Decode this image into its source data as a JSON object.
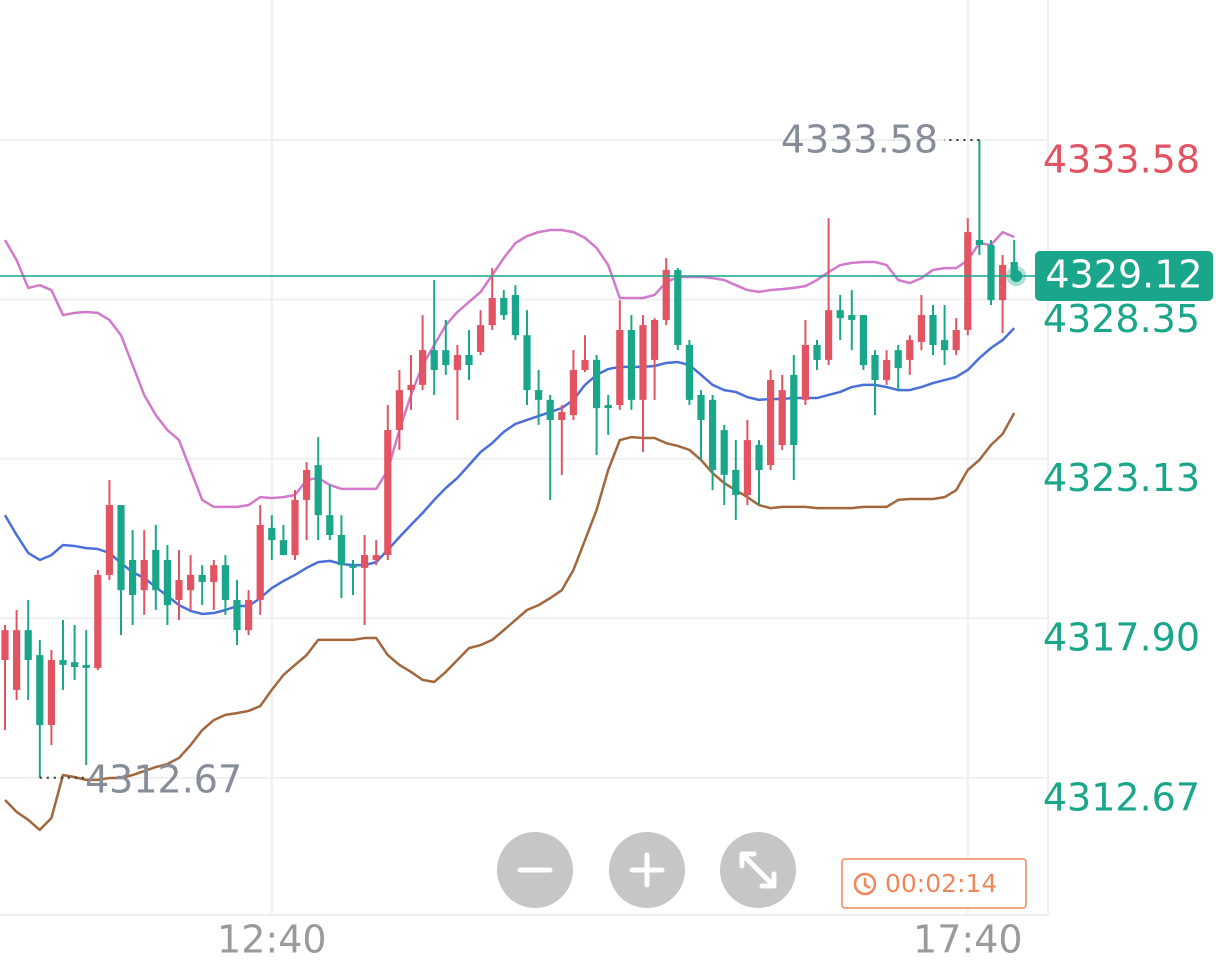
{
  "chart_data": {
    "type": "candlestick",
    "categories": [
      null,
      null,
      null,
      null,
      null,
      null,
      null,
      null,
      null,
      null,
      null,
      null,
      null,
      null,
      null,
      null,
      null,
      null,
      null,
      null,
      null,
      null,
      null,
      "12:40",
      null,
      null,
      null,
      null,
      null,
      null,
      null,
      null,
      null,
      null,
      null,
      null,
      null,
      null,
      null,
      null,
      null,
      null,
      null,
      null,
      null,
      null,
      null,
      null,
      null,
      null,
      null,
      null,
      null,
      null,
      null,
      null,
      null,
      null,
      null,
      null,
      null,
      null,
      null,
      null,
      null,
      null,
      null,
      null,
      null,
      null,
      null,
      null,
      null,
      null,
      null,
      null,
      null,
      null,
      null,
      null,
      null,
      null,
      null,
      "17:40",
      null,
      null,
      null,
      null
    ],
    "open": [
      4316.53,
      4315.55,
      4317.51,
      4316.69,
      4314.4,
      4316.53,
      4316.46,
      4316.37,
      4316.27,
      4319.32,
      4321.61,
      4319.81,
      4318.82,
      4320.14,
      4319.81,
      4318.5,
      4318.82,
      4319.32,
      4319.09,
      4319.64,
      4318.5,
      4317.51,
      4318.5,
      4320.86,
      4320.46,
      4319.97,
      4321.78,
      4322.92,
      4321.28,
      4320.63,
      4319.64,
      4319.55,
      4319.81,
      4319.97,
      4324.07,
      4325.38,
      4325.55,
      4326.69,
      4326.69,
      4326.04,
      4326.53,
      4326.63,
      4327.51,
      4328.4,
      4328.5,
      4327.18,
      4325.38,
      4325.06,
      4324.4,
      4324.56,
      4326.04,
      4326.37,
      4324.89,
      4324.89,
      4327.35,
      4325.06,
      4326.37,
      4327.68,
      4329.32,
      4326.86,
      4325.22,
      4325.06,
      4324.07,
      4322.76,
      4321.94,
      4323.58,
      4322.92,
      4323.58,
      4325.88,
      4325.06,
      4326.86,
      4326.37,
      4328.0,
      4327.84,
      4327.84,
      4326.53,
      4325.71,
      4326.69,
      4326.37,
      4326.96,
      4327.84,
      4327.02,
      4326.69,
      4327.35,
      4330.3,
      4330.14,
      4328.33,
      4329.58
    ],
    "high": [
      4317.68,
      4318.17,
      4318.5,
      4317.19,
      4316.86,
      4317.84,
      4317.68,
      4317.51,
      4319.48,
      4322.43,
      4321.61,
      4320.79,
      4320.79,
      4320.96,
      4320.3,
      4320.14,
      4319.97,
      4319.64,
      4319.81,
      4319.97,
      4319.15,
      4318.82,
      4321.61,
      4321.28,
      4320.96,
      4322.1,
      4323.02,
      4323.84,
      4322.27,
      4321.28,
      4319.81,
      4320.63,
      4320.46,
      4324.89,
      4326.04,
      4326.53,
      4327.84,
      4328.99,
      4327.68,
      4326.86,
      4327.35,
      4328.0,
      4329.38,
      4328.66,
      4328.82,
      4328.0,
      4326.04,
      4325.22,
      4324.89,
      4326.69,
      4327.18,
      4326.53,
      4325.22,
      4328.33,
      4327.84,
      4327.84,
      4327.74,
      4329.71,
      4329.38,
      4327.02,
      4325.38,
      4325.22,
      4324.24,
      4323.74,
      4324.4,
      4323.74,
      4326.04,
      4325.88,
      4326.53,
      4327.68,
      4327.02,
      4331.02,
      4328.5,
      4328.66,
      4327.84,
      4326.69,
      4326.69,
      4326.86,
      4327.18,
      4328.5,
      4328.17,
      4328.17,
      4327.74,
      4331.02,
      4333.58,
      4330.3,
      4329.81,
      4330.3
    ],
    "low": [
      4314.23,
      4315.22,
      4315.22,
      4312.67,
      4313.74,
      4315.55,
      4315.88,
      4313.09,
      4316.2,
      4319.15,
      4317.35,
      4317.68,
      4318.01,
      4318.17,
      4317.68,
      4317.84,
      4318.17,
      4318.33,
      4318.17,
      4318.01,
      4317.02,
      4317.35,
      4318.01,
      4319.81,
      4319.97,
      4319.81,
      4320.46,
      4320.46,
      4320.46,
      4318.56,
      4318.66,
      4317.68,
      4319.64,
      4319.81,
      4323.42,
      4324.73,
      4325.38,
      4325.22,
      4325.88,
      4324.4,
      4325.71,
      4326.53,
      4327.35,
      4327.68,
      4327.02,
      4324.89,
      4324.24,
      4321.78,
      4322.6,
      4324.4,
      4325.97,
      4323.25,
      4323.91,
      4324.73,
      4324.73,
      4323.35,
      4325.06,
      4327.51,
      4326.69,
      4324.89,
      4323.09,
      4322.1,
      4321.61,
      4321.12,
      4321.61,
      4321.61,
      4322.76,
      4323.42,
      4322.43,
      4324.89,
      4326.04,
      4326.2,
      4327.02,
      4326.69,
      4326.04,
      4324.56,
      4325.55,
      4325.38,
      4325.88,
      4326.69,
      4326.53,
      4326.2,
      4326.53,
      4327.18,
      4329.81,
      4328.17,
      4327.25,
      4328.99
    ],
    "close": [
      4317.51,
      4317.51,
      4316.53,
      4314.4,
      4316.53,
      4316.37,
      4316.3,
      4316.27,
      4319.32,
      4321.61,
      4318.82,
      4318.66,
      4319.81,
      4318.82,
      4318.33,
      4319.15,
      4319.32,
      4319.09,
      4319.64,
      4318.5,
      4317.51,
      4318.5,
      4320.96,
      4320.46,
      4319.97,
      4321.78,
      4322.76,
      4321.28,
      4320.63,
      4319.64,
      4319.55,
      4319.97,
      4319.97,
      4324.07,
      4325.38,
      4325.55,
      4326.69,
      4326.04,
      4326.2,
      4326.53,
      4326.2,
      4327.51,
      4328.4,
      4327.84,
      4327.18,
      4325.38,
      4325.06,
      4324.4,
      4324.66,
      4326.04,
      4326.37,
      4324.79,
      4324.79,
      4327.35,
      4325.06,
      4327.51,
      4327.68,
      4329.32,
      4326.86,
      4325.06,
      4324.4,
      4322.76,
      4322.6,
      4321.94,
      4323.74,
      4322.76,
      4325.71,
      4325.38,
      4323.58,
      4326.86,
      4326.37,
      4328.0,
      4327.74,
      4327.68,
      4326.2,
      4325.71,
      4326.37,
      4326.1,
      4327.02,
      4327.84,
      4326.86,
      4326.69,
      4327.35,
      4330.56,
      4330.14,
      4328.33,
      4329.48,
      4329.12
    ],
    "up_color": "#e35462",
    "down_color": "#1aa68a",
    "lines": [
      {
        "color": "#d279cc",
        "values": [
          4330.3,
          4329.64,
          4328.73,
          4328.82,
          4328.66,
          4327.84,
          4327.91,
          4327.94,
          4327.91,
          4327.68,
          4327.18,
          4326.2,
          4325.22,
          4324.56,
          4324.07,
          4323.74,
          4322.76,
          4321.78,
          4321.55,
          4321.55,
          4321.55,
          4321.61,
          4321.87,
          4321.84,
          4321.87,
          4321.94,
          4322.43,
          4322.5,
          4322.27,
          4322.14,
          4322.14,
          4322.14,
          4322.14,
          4322.76,
          4324.07,
          4325.22,
          4326.2,
          4326.86,
          4327.51,
          4327.94,
          4328.27,
          4328.6,
          4329.15,
          4329.71,
          4330.2,
          4330.43,
          4330.56,
          4330.63,
          4330.63,
          4330.56,
          4330.37,
          4330.04,
          4329.48,
          4328.4,
          4328.4,
          4328.4,
          4328.5,
          4328.92,
          4329.09,
          4329.09,
          4329.09,
          4329.05,
          4328.99,
          4328.82,
          4328.66,
          4328.6,
          4328.66,
          4328.69,
          4328.73,
          4328.79,
          4328.99,
          4329.25,
          4329.48,
          4329.55,
          4329.58,
          4329.58,
          4329.48,
          4328.99,
          4328.89,
          4329.05,
          4329.32,
          4329.38,
          4329.38,
          4329.64,
          4330.2,
          4330.14,
          4330.56,
          4330.4
        ]
      },
      {
        "color": "#4a6fd9",
        "values": [
          4321.28,
          4320.63,
          4320.04,
          4319.81,
          4319.97,
          4320.3,
          4320.27,
          4320.2,
          4320.17,
          4320.04,
          4319.71,
          4319.41,
          4319.22,
          4318.92,
          4318.63,
          4318.33,
          4318.14,
          4318.04,
          4318.07,
          4318.17,
          4318.3,
          4318.3,
          4318.56,
          4318.89,
          4319.12,
          4319.32,
          4319.55,
          4319.74,
          4319.78,
          4319.68,
          4319.64,
          4319.64,
          4319.74,
          4320.14,
          4320.56,
          4320.96,
          4321.35,
          4321.78,
          4322.17,
          4322.5,
          4322.92,
          4323.35,
          4323.64,
          4324.01,
          4324.27,
          4324.4,
          4324.53,
          4324.66,
          4324.79,
          4325.06,
          4325.55,
          4325.88,
          4326.07,
          4326.14,
          4326.14,
          4326.14,
          4326.17,
          4326.27,
          4326.3,
          4326.2,
          4325.88,
          4325.55,
          4325.38,
          4325.32,
          4325.15,
          4325.06,
          4325.09,
          4325.09,
          4325.12,
          4325.12,
          4325.12,
          4325.22,
          4325.32,
          4325.48,
          4325.55,
          4325.55,
          4325.48,
          4325.38,
          4325.38,
          4325.48,
          4325.61,
          4325.71,
          4325.81,
          4326.04,
          4326.43,
          4326.76,
          4327.02,
          4327.41
        ]
      },
      {
        "color": "#a2673d",
        "values": [
          4311.94,
          4311.55,
          4311.29,
          4310.96,
          4311.35,
          4312.76,
          4312.69,
          4312.6,
          4312.6,
          4312.66,
          4312.66,
          4312.76,
          4312.89,
          4313.02,
          4313.12,
          4313.32,
          4313.74,
          4314.23,
          4314.56,
          4314.73,
          4314.79,
          4314.86,
          4315.02,
          4315.55,
          4316.04,
          4316.37,
          4316.69,
          4317.19,
          4317.19,
          4317.19,
          4317.19,
          4317.25,
          4317.25,
          4316.69,
          4316.37,
          4316.14,
          4315.88,
          4315.81,
          4316.14,
          4316.53,
          4316.92,
          4317.02,
          4317.19,
          4317.51,
          4317.84,
          4318.17,
          4318.33,
          4318.56,
          4318.82,
          4319.48,
          4320.46,
          4321.45,
          4322.76,
          4323.74,
          4323.84,
          4323.81,
          4323.81,
          4323.64,
          4323.55,
          4323.42,
          4323.09,
          4322.66,
          4322.33,
          4322.1,
          4321.87,
          4321.61,
          4321.51,
          4321.55,
          4321.55,
          4321.55,
          4321.51,
          4321.51,
          4321.51,
          4321.51,
          4321.55,
          4321.55,
          4321.55,
          4321.78,
          4321.81,
          4321.81,
          4321.81,
          4321.87,
          4322.1,
          4322.76,
          4323.09,
          4323.58,
          4323.94,
          4324.63
        ]
      }
    ],
    "ylim": [
      4308.17,
      4338.17
    ],
    "yticks": [
      4312.67,
      {
        "value": 4317.9,
        "label": "4317.90"
      },
      4323.13,
      4328.35,
      4333.58
    ],
    "grid": true,
    "countdown": "00:02:14"
  }
}
